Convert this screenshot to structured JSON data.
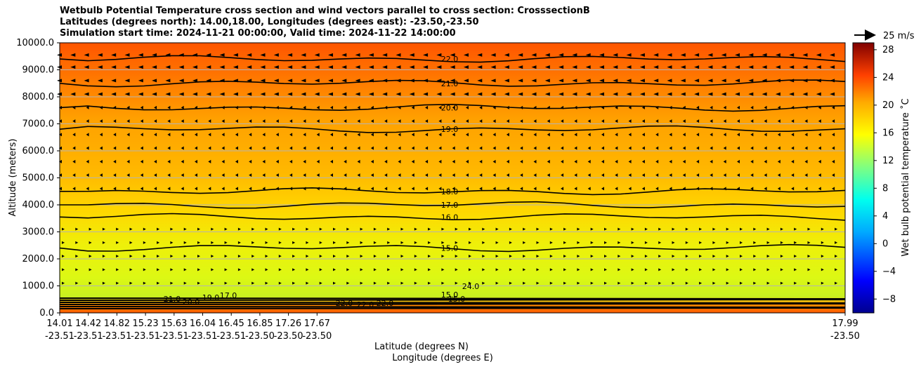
{
  "chart_data": {
    "type": "heatmap",
    "title_lines": [
      "Wetbulb Potential Temperature cross section and wind vectors parallel to cross section: CrosssectionB",
      "Latitudes (degrees north): 14.00,18.00, Longitudes (degrees east): -23.50,-23.50",
      "Simulation start time: 2024-11-21 00:00:00, Valid time: 2024-11-22 14:00:00"
    ],
    "xlabel": "Latitude (degrees N)",
    "xlabel2": "Longitude (degrees E)",
    "ylabel": "Altitude (meters)",
    "ylim": [
      0,
      10000
    ],
    "y_ticks": [
      "0.0",
      "1000.0",
      "2000.0",
      "3000.0",
      "4000.0",
      "5000.0",
      "6000.0",
      "7000.0",
      "8000.0",
      "9000.0",
      "10000.0"
    ],
    "x_ticks": [
      {
        "lat": "14.01",
        "lon": "-23.51"
      },
      {
        "lat": "14.42",
        "lon": "-23.51"
      },
      {
        "lat": "14.82",
        "lon": "-23.51"
      },
      {
        "lat": "15.23",
        "lon": "-23.51"
      },
      {
        "lat": "15.63",
        "lon": "-23.51"
      },
      {
        "lat": "16.04",
        "lon": "-23.51"
      },
      {
        "lat": "16.45",
        "lon": "-23.51"
      },
      {
        "lat": "16.85",
        "lon": "-23.50"
      },
      {
        "lat": "17.26",
        "lon": "-23.50"
      },
      {
        "lat": "17.67",
        "lon": "-23.50"
      },
      {
        "lat": "17.99",
        "lon": "-23.50"
      }
    ],
    "grid": true,
    "colorbar": {
      "label": "Wet bulb potential temperature ˚C",
      "ticks": [
        "−8",
        "−4",
        "0",
        "4",
        "8",
        "12",
        "16",
        "20",
        "24",
        "28"
      ],
      "range": [
        -10,
        29
      ]
    },
    "wind_reference": "25 m/s",
    "contours": [
      {
        "level": "15.0",
        "alt": 2400
      },
      {
        "level": "16.0",
        "alt": 3550
      },
      {
        "level": "17.0",
        "alt": 4000
      },
      {
        "level": "18.0",
        "alt": 4500
      },
      {
        "level": "19.0",
        "alt": 6800
      },
      {
        "level": "20.0",
        "alt": 7600
      },
      {
        "level": "21.0",
        "alt": 8500
      },
      {
        "level": "22.0",
        "alt": 9400
      }
    ],
    "low_level_labels": [
      "21.0",
      "20.0",
      "19.0",
      "17.0",
      "22.0",
      "22.0",
      "22.0",
      "15.0",
      "15.0",
      "24.0"
    ]
  }
}
